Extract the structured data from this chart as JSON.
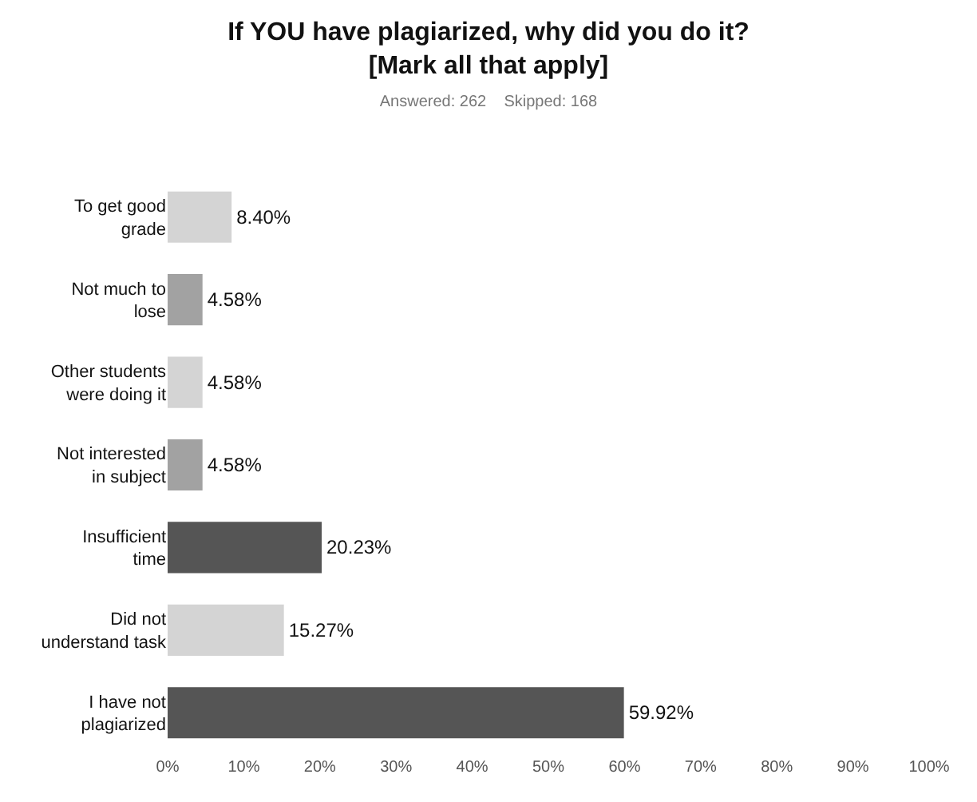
{
  "chart_data": {
    "type": "bar",
    "orientation": "horizontal",
    "title": "If YOU have plagiarized, why did you do it?\n[Mark all that apply]",
    "subtitle": "Answered: 262    Skipped: 168",
    "categories": [
      "To get good\ngrade",
      "Not much to\nlose",
      "Other students\nwere doing it",
      "Not interested\nin subject",
      "Insufficient\ntime",
      "Did not\nunderstand task",
      "I have not\nplagiarized"
    ],
    "values": [
      8.4,
      4.58,
      4.58,
      4.58,
      20.23,
      15.27,
      59.92
    ],
    "value_labels": [
      "8.40%",
      "4.58%",
      "4.58%",
      "4.58%",
      "20.23%",
      "15.27%",
      "59.92%"
    ],
    "colors": [
      "#d4d4d4",
      "#a2a2a2",
      "#d4d4d4",
      "#a2a2a2",
      "#555555",
      "#d4d4d4",
      "#555555"
    ],
    "xlim": [
      0,
      100
    ],
    "xticks": [
      {
        "value": 0,
        "label": "0%"
      },
      {
        "value": 10,
        "label": "10%"
      },
      {
        "value": 20,
        "label": "20%"
      },
      {
        "value": 30,
        "label": "30%"
      },
      {
        "value": 40,
        "label": "40%"
      },
      {
        "value": 50,
        "label": "50%"
      },
      {
        "value": 60,
        "label": "60%"
      },
      {
        "value": 70,
        "label": "70%"
      },
      {
        "value": 80,
        "label": "80%"
      },
      {
        "value": 90,
        "label": "90%"
      },
      {
        "value": 100,
        "label": "100%"
      }
    ]
  }
}
